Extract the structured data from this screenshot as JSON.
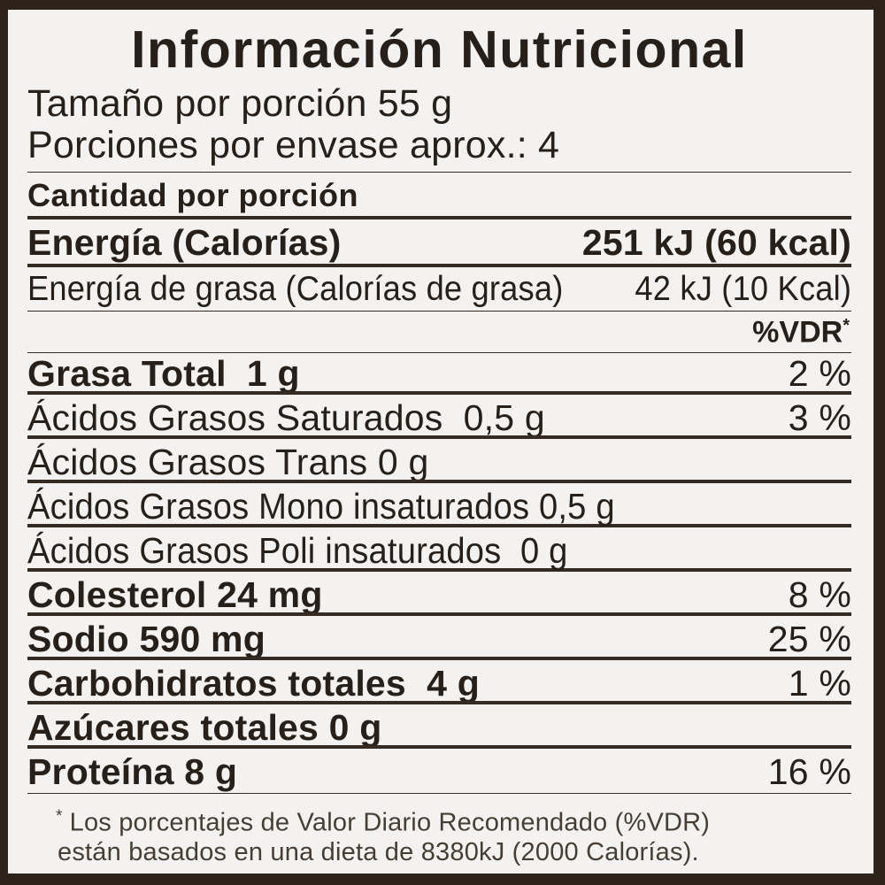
{
  "label": {
    "title": "Información Nutricional",
    "serving": {
      "size_line": "Tamaño por porción 55 g",
      "per_package_line": "Porciones por envase aprox.: 4"
    },
    "amount_header": "Cantidad por porción",
    "energy_rows": [
      {
        "name": "Energía (Calorías)",
        "value": "251 kJ (60 kcal)"
      },
      {
        "name": "Energía de grasa (Calorías de grasa)",
        "value": "42 kJ (10 Kcal)"
      }
    ],
    "vdr_header_text": "%VDR",
    "vdr_header_mark": "*",
    "rows": [
      {
        "name": "Grasa Total  1 g",
        "vdr": "2 %"
      },
      {
        "name": "Ácidos Grasos Saturados  0,5 g",
        "vdr": "3 %"
      },
      {
        "name": "Ácidos Grasos Trans 0 g",
        "vdr": ""
      },
      {
        "name": "Ácidos Grasos Mono insaturados 0,5 g",
        "vdr": ""
      },
      {
        "name": "Ácidos Grasos Poli insaturados  0 g",
        "vdr": ""
      },
      {
        "name": "Colesterol 24 mg",
        "vdr": "8 %"
      },
      {
        "name": "Sodio 590 mg",
        "vdr": "25 %"
      },
      {
        "name": "Carbohidratos totales  4 g",
        "vdr": "1 %"
      },
      {
        "name": "Azúcares totales 0 g",
        "vdr": ""
      },
      {
        "name": "Proteína 8 g",
        "vdr": "16 %"
      }
    ],
    "footnote": {
      "marker": "*",
      "line1": "Los porcentajes de Valor Diario Recomendado (%VDR)",
      "line2": "están basados en una dieta de 8380kJ (2000 Calorías)."
    },
    "colors": {
      "paper": "#f3f2f0",
      "ink": "#27201a",
      "frame": "#2d2319"
    }
  }
}
